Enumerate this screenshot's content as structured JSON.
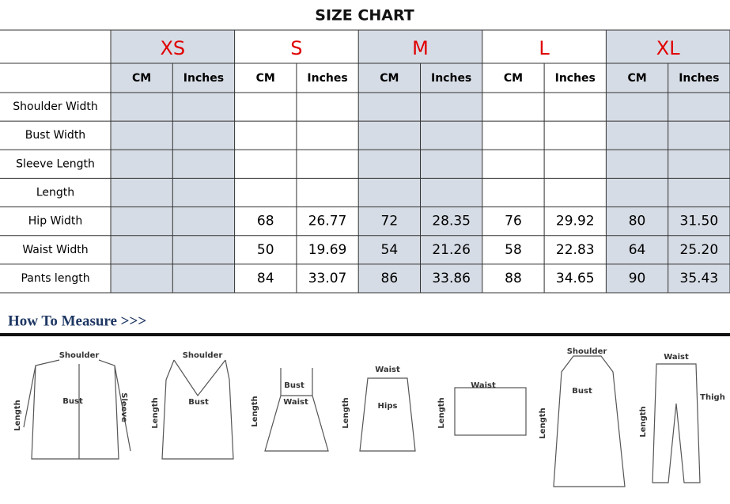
{
  "title": "SIZE CHART",
  "table": {
    "sizes": [
      "XS",
      "S",
      "M",
      "L",
      "XL"
    ],
    "units": [
      "CM",
      "Inches"
    ],
    "rows": [
      [
        "Shoulder Width",
        null,
        null,
        null,
        null,
        null,
        null,
        null,
        null,
        null,
        null
      ],
      [
        "Bust Width",
        null,
        null,
        null,
        null,
        null,
        null,
        null,
        null,
        null,
        null
      ],
      [
        "Sleeve Length",
        null,
        null,
        null,
        null,
        null,
        null,
        null,
        null,
        null,
        null
      ],
      [
        "Length",
        null,
        null,
        null,
        null,
        null,
        null,
        null,
        null,
        null,
        null
      ],
      [
        "Hip Width",
        null,
        null,
        "68",
        "26.77",
        "72",
        "28.35",
        "76",
        "29.92",
        "80",
        "31.50"
      ],
      [
        "Waist Width",
        null,
        null,
        "50",
        "19.69",
        "54",
        "21.26",
        "58",
        "22.83",
        "64",
        "25.20"
      ],
      [
        "Pants length",
        null,
        null,
        "84",
        "33.07",
        "86",
        "33.86",
        "88",
        "34.65",
        "90",
        "35.43"
      ]
    ]
  },
  "measure": {
    "title": "How To Measure >>>",
    "figures": [
      [
        "Shoulder",
        "Bust",
        "Sleeve",
        "Length"
      ],
      [
        "Shoulder",
        "Bust",
        "Length"
      ],
      [
        "Bust",
        "Waist",
        "Length"
      ],
      [
        "Waist",
        "Hips",
        "Length"
      ],
      [
        "Waist",
        "Length"
      ],
      [
        "Shoulder",
        "Bust",
        "Length"
      ],
      [
        "Waist",
        "Thigh",
        "Length"
      ]
    ]
  }
}
